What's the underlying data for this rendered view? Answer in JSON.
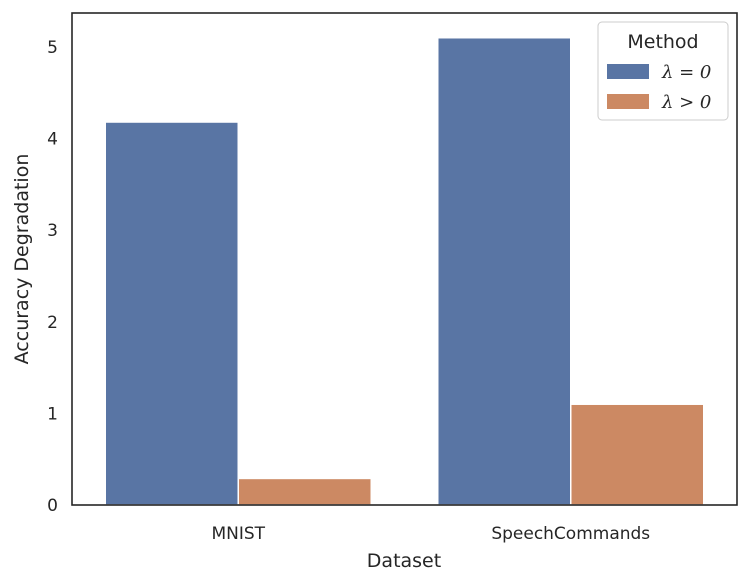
{
  "chart_data": {
    "type": "bar",
    "xlabel": "Dataset",
    "ylabel": "Accuracy Degradation",
    "categories": [
      "MNIST",
      "SpeechCommands"
    ],
    "series": [
      {
        "name": "λ = 0",
        "values": [
          4.18,
          5.1
        ],
        "color": "#5975a4"
      },
      {
        "name": "λ > 0",
        "values": [
          0.29,
          1.1
        ],
        "color": "#cc8963"
      }
    ],
    "ylim": [
      0,
      5.37
    ],
    "yticks": [
      0,
      1,
      2,
      3,
      4,
      5
    ],
    "legend": {
      "title": "Method",
      "placement": "top-right"
    },
    "grid": false
  }
}
